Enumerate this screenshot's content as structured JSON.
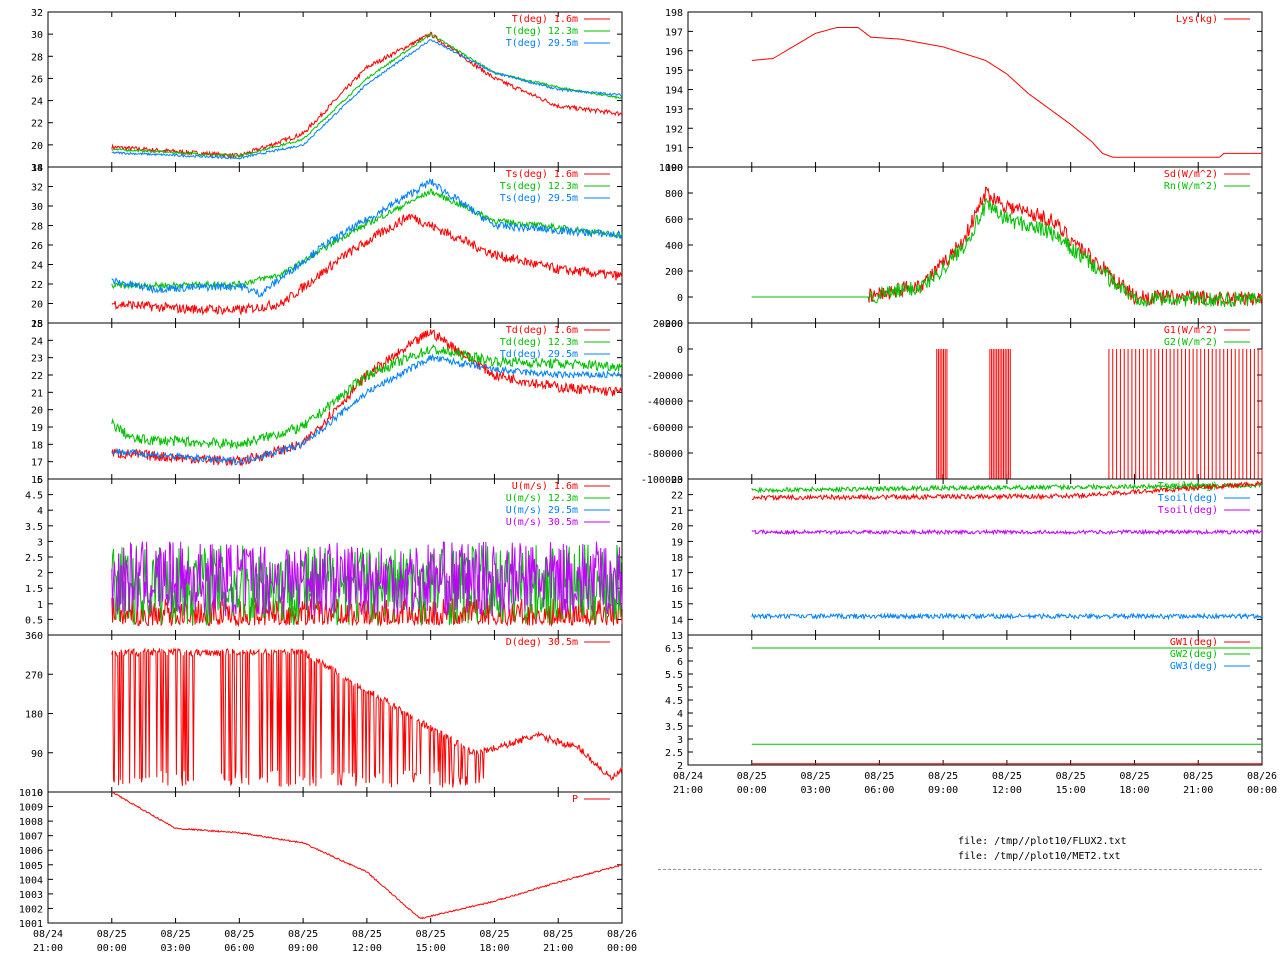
{
  "colors": {
    "red": "#ff0000",
    "green": "#00c000",
    "blue": "#0080ff",
    "magenta": "#c000ff"
  },
  "footer": {
    "file1": "file: /tmp//plot10/FLUX2.txt",
    "file2": "file: /tmp//plot10/MET2.txt"
  },
  "time_ticks": [
    {
      "date": "08/24",
      "time": "21:00"
    },
    {
      "date": "08/25",
      "time": "00:00"
    },
    {
      "date": "08/25",
      "time": "03:00"
    },
    {
      "date": "08/25",
      "time": "06:00"
    },
    {
      "date": "08/25",
      "time": "09:00"
    },
    {
      "date": "08/25",
      "time": "12:00"
    },
    {
      "date": "08/25",
      "time": "15:00"
    },
    {
      "date": "08/25",
      "time": "18:00"
    },
    {
      "date": "08/25",
      "time": "21:00"
    },
    {
      "date": "08/26",
      "time": "00:00"
    }
  ],
  "chart_data": [
    {
      "id": "T",
      "type": "line",
      "x_hours": [
        -3,
        24
      ],
      "ylim": [
        18,
        32
      ],
      "yticks": [
        "18",
        "20",
        "22",
        "24",
        "26",
        "28",
        "30",
        "32"
      ],
      "series": [
        {
          "name": "T(deg)  1.6m",
          "color": "red",
          "noise": 0.2,
          "pts": [
            [
              0,
              19.8
            ],
            [
              6,
              19.0
            ],
            [
              9,
              21.0
            ],
            [
              12,
              27.0
            ],
            [
              15,
              30.0
            ],
            [
              18,
              26.0
            ],
            [
              21,
              23.5
            ],
            [
              24,
              22.8
            ]
          ]
        },
        {
          "name": "T(deg) 12.3m",
          "color": "green",
          "noise": 0.1,
          "pts": [
            [
              0,
              19.6
            ],
            [
              6,
              19.0
            ],
            [
              9,
              20.5
            ],
            [
              12,
              26.0
            ],
            [
              15,
              30.0
            ],
            [
              18,
              26.5
            ],
            [
              21,
              25.2
            ],
            [
              24,
              24.2
            ]
          ]
        },
        {
          "name": "T(deg) 29.5m",
          "color": "blue",
          "noise": 0.1,
          "pts": [
            [
              0,
              19.3
            ],
            [
              6,
              18.8
            ],
            [
              9,
              20.0
            ],
            [
              12,
              25.5
            ],
            [
              15,
              29.5
            ],
            [
              18,
              26.5
            ],
            [
              21,
              25.0
            ],
            [
              24,
              24.5
            ]
          ]
        }
      ]
    },
    {
      "id": "Ts",
      "type": "line",
      "x_hours": [
        -3,
        24
      ],
      "ylim": [
        18,
        34
      ],
      "yticks": [
        "18",
        "20",
        "22",
        "24",
        "26",
        "28",
        "30",
        "32",
        "34"
      ],
      "series": [
        {
          "name": "Ts(deg)  1.6m",
          "color": "red",
          "noise": 0.5,
          "pts": [
            [
              0,
              20.0
            ],
            [
              3,
              19.5
            ],
            [
              6,
              19.3
            ],
            [
              8,
              20.0
            ],
            [
              11,
              25.0
            ],
            [
              14,
              29.0
            ],
            [
              18,
              25.0
            ],
            [
              21,
              23.5
            ],
            [
              24,
              22.8
            ]
          ]
        },
        {
          "name": "Ts(deg) 12.3m",
          "color": "green",
          "noise": 0.3,
          "pts": [
            [
              0,
              21.8
            ],
            [
              6,
              22.0
            ],
            [
              8,
              23.0
            ],
            [
              11,
              27.0
            ],
            [
              15,
              31.5
            ],
            [
              18,
              28.5
            ],
            [
              21,
              27.8
            ],
            [
              24,
              27.0
            ]
          ]
        },
        {
          "name": "Ts(deg) 29.5m",
          "color": "blue",
          "noise": 0.4,
          "pts": [
            [
              0,
              22.3
            ],
            [
              2,
              21.5
            ],
            [
              6,
              21.8
            ],
            [
              7,
              21.0
            ],
            [
              10,
              26.0
            ],
            [
              15,
              32.5
            ],
            [
              18,
              28.0
            ],
            [
              21,
              27.5
            ],
            [
              24,
              27.0
            ]
          ]
        }
      ]
    },
    {
      "id": "Td",
      "type": "line",
      "x_hours": [
        -3,
        24
      ],
      "ylim": [
        16,
        25
      ],
      "yticks": [
        "16",
        "17",
        "18",
        "19",
        "20",
        "21",
        "22",
        "23",
        "24",
        "25"
      ],
      "series": [
        {
          "name": "Td(deg)  1.6m",
          "color": "red",
          "noise": 0.3,
          "pts": [
            [
              0,
              17.5
            ],
            [
              6,
              17.0
            ],
            [
              9,
              18.0
            ],
            [
              12,
              22.0
            ],
            [
              15,
              24.5
            ],
            [
              18,
              22.0
            ],
            [
              21,
              21.3
            ],
            [
              24,
              21.0
            ]
          ]
        },
        {
          "name": "Td(deg) 12.3m",
          "color": "green",
          "noise": 0.3,
          "pts": [
            [
              0,
              19.2
            ],
            [
              1,
              18.3
            ],
            [
              6,
              18.0
            ],
            [
              9,
              19.0
            ],
            [
              12,
              22.0
            ],
            [
              15,
              23.5
            ],
            [
              18,
              22.8
            ],
            [
              24,
              22.5
            ]
          ]
        },
        {
          "name": "Td(deg) 29.5m",
          "color": "blue",
          "noise": 0.2,
          "pts": [
            [
              0,
              17.6
            ],
            [
              6,
              17.0
            ],
            [
              9,
              18.0
            ],
            [
              12,
              21.0
            ],
            [
              15,
              23.0
            ],
            [
              18,
              22.3
            ],
            [
              21,
              22.0
            ],
            [
              24,
              22.0
            ]
          ]
        }
      ]
    },
    {
      "id": "U",
      "type": "line",
      "x_hours": [
        -3,
        24
      ],
      "ylim": [
        0,
        5
      ],
      "yticks": [
        "",
        "0.5",
        "1",
        "1.5",
        "2",
        "2.5",
        "3",
        "3.5",
        "4",
        "4.5",
        "5"
      ],
      "series": [
        {
          "name": "U(m/s)  1.6m",
          "color": "red",
          "noise": 0.6,
          "pts": [
            [
              0,
              0.6
            ],
            [
              24,
              0.6
            ]
          ]
        },
        {
          "name": "U(m/s) 12.3m",
          "color": "green",
          "noise": 1.3,
          "pts": [
            [
              0,
              1.6
            ],
            [
              24,
              1.6
            ]
          ]
        },
        {
          "name": "U(m/s) 29.5m",
          "color": "blue",
          "noise": 0.0,
          "pts": []
        },
        {
          "name": "U(m/s) 30.5m",
          "color": "magenta",
          "noise": 1.2,
          "pts": [
            [
              0,
              1.8
            ],
            [
              24,
              1.8
            ]
          ]
        }
      ]
    },
    {
      "id": "D",
      "type": "line",
      "x_hours": [
        -3,
        24
      ],
      "ylim": [
        0,
        360
      ],
      "yticks": [
        "0",
        "90",
        "180",
        "270",
        "360"
      ],
      "series": [
        {
          "name": "D(deg)  30.5m",
          "color": "red",
          "noise": 8,
          "pts": [
            [
              0,
              320
            ],
            [
              9,
              320
            ],
            [
              17,
              90
            ],
            [
              18,
              100
            ],
            [
              20,
              130
            ],
            [
              22,
              100
            ],
            [
              23.5,
              30
            ],
            [
              24,
              50
            ]
          ]
        }
      ]
    },
    {
      "id": "P",
      "type": "line",
      "x_hours": [
        -3,
        24
      ],
      "ylim": [
        1001,
        1010
      ],
      "yticks": [
        "1001",
        "1002",
        "1003",
        "1004",
        "1005",
        "1006",
        "1007",
        "1008",
        "1009",
        "1010"
      ],
      "series": [
        {
          "name": "P",
          "color": "red",
          "noise": 0.05,
          "pts": [
            [
              0,
              1010
            ],
            [
              3,
              1007.5
            ],
            [
              6,
              1007.2
            ],
            [
              9,
              1006.5
            ],
            [
              12,
              1004.5
            ],
            [
              14.5,
              1001.3
            ],
            [
              18,
              1002.5
            ],
            [
              21,
              1003.8
            ],
            [
              24,
              1005
            ]
          ]
        }
      ]
    },
    {
      "id": "Lys",
      "type": "line",
      "x_hours": [
        -3,
        24
      ],
      "ylim": [
        190,
        198
      ],
      "yticks": [
        "190",
        "191",
        "192",
        "193",
        "194",
        "195",
        "196",
        "197",
        "198"
      ],
      "series": [
        {
          "name": "Lys(kg)",
          "color": "red",
          "noise": 0.0,
          "pts": [
            [
              0,
              195.5
            ],
            [
              1,
              195.6
            ],
            [
              3,
              196.9
            ],
            [
              4,
              197.2
            ],
            [
              5,
              197.2
            ],
            [
              5.6,
              196.7
            ],
            [
              7,
              196.6
            ],
            [
              9,
              196.2
            ],
            [
              11,
              195.5
            ],
            [
              12,
              194.8
            ],
            [
              13,
              193.8
            ],
            [
              15,
              192.2
            ],
            [
              16,
              191.3
            ],
            [
              16.5,
              190.7
            ],
            [
              17,
              190.5
            ],
            [
              22,
              190.5
            ],
            [
              22.2,
              190.7
            ],
            [
              24,
              190.7
            ]
          ]
        }
      ]
    },
    {
      "id": "Rad",
      "type": "line",
      "x_hours": [
        -3,
        24
      ],
      "ylim": [
        -200,
        1000
      ],
      "yticks": [
        "-200",
        "0",
        "200",
        "400",
        "600",
        "800",
        "1000"
      ],
      "series": [
        {
          "name": "Sd(W/m^2)",
          "color": "red",
          "noise": 60,
          "pts": [
            [
              0,
              0
            ],
            [
              5.5,
              0
            ],
            [
              8,
              100
            ],
            [
              9,
              250
            ],
            [
              10,
              450
            ],
            [
              11,
              800
            ],
            [
              12,
              700
            ],
            [
              14,
              600
            ],
            [
              16,
              300
            ],
            [
              18,
              0
            ],
            [
              24,
              -15
            ]
          ]
        },
        {
          "name": "Rn(W/m^2)",
          "color": "green",
          "noise": 60,
          "pts": [
            [
              0,
              0
            ],
            [
              5.5,
              0
            ],
            [
              8,
              80
            ],
            [
              9,
              220
            ],
            [
              10,
              400
            ],
            [
              11,
              700
            ],
            [
              12,
              600
            ],
            [
              14,
              500
            ],
            [
              16,
              250
            ],
            [
              18,
              -10
            ],
            [
              24,
              -20
            ]
          ]
        }
      ]
    },
    {
      "id": "G",
      "type": "line",
      "x_hours": [
        -3,
        24
      ],
      "ylim": [
        -100000,
        20000
      ],
      "yticks": [
        "-100000",
        "-80000",
        "-60000",
        "-40000",
        "-20000",
        "0",
        "20000"
      ],
      "series": [
        {
          "name": "G1(W/m^2)",
          "color": "red",
          "noise": 0.0,
          "pts": []
        },
        {
          "name": "G2(W/m^2)",
          "color": "green",
          "noise": 0.0,
          "pts": []
        }
      ]
    },
    {
      "id": "Tsoil",
      "type": "line",
      "x_hours": [
        -3,
        24
      ],
      "ylim": [
        13,
        23
      ],
      "yticks": [
        "13",
        "14",
        "15",
        "16",
        "17",
        "18",
        "19",
        "20",
        "21",
        "22",
        "23"
      ],
      "series": [
        {
          "name": "Tsoil(deg)",
          "color": "green",
          "noise": 0.15,
          "pts": [
            [
              0,
              22.3
            ],
            [
              24,
              22.6
            ]
          ]
        },
        {
          "name": "Tsoil(deg)",
          "color": "blue",
          "noise": 0.15,
          "pts": [
            [
              0,
              14.2
            ],
            [
              24,
              14.2
            ]
          ]
        },
        {
          "name": "Tsoil(deg)",
          "color": "magenta",
          "noise": 0.12,
          "pts": [
            [
              0,
              19.6
            ],
            [
              24,
              19.6
            ]
          ]
        },
        {
          "name": "",
          "color": "red",
          "noise": 0.15,
          "pts": [
            [
              0,
              21.8
            ],
            [
              15,
              21.9
            ],
            [
              24,
              22.7
            ]
          ]
        }
      ]
    },
    {
      "id": "GW",
      "type": "line",
      "x_hours": [
        -3,
        24
      ],
      "ylim": [
        2,
        7
      ],
      "yticks": [
        "2",
        "2.5",
        "3",
        "3.5",
        "4",
        "4.5",
        "5",
        "5.5",
        "6",
        "6.5"
      ],
      "series": [
        {
          "name": "GW1(deg)",
          "color": "red",
          "noise": 0.0,
          "pts": [
            [
              0,
              2.05
            ],
            [
              24,
              2.05
            ]
          ]
        },
        {
          "name": "GW2(deg)",
          "color": "green",
          "noise": 0.0,
          "pts": [
            [
              0,
              2.8
            ],
            [
              24,
              2.8
            ]
          ]
        },
        {
          "name": "GW3(deg)",
          "color": "blue",
          "noise": 0.0,
          "pts": []
        },
        {
          "name": "",
          "color": "green",
          "noise": 0.0,
          "pts": [
            [
              0,
              6.5
            ],
            [
              24,
              6.5
            ]
          ]
        }
      ]
    }
  ]
}
